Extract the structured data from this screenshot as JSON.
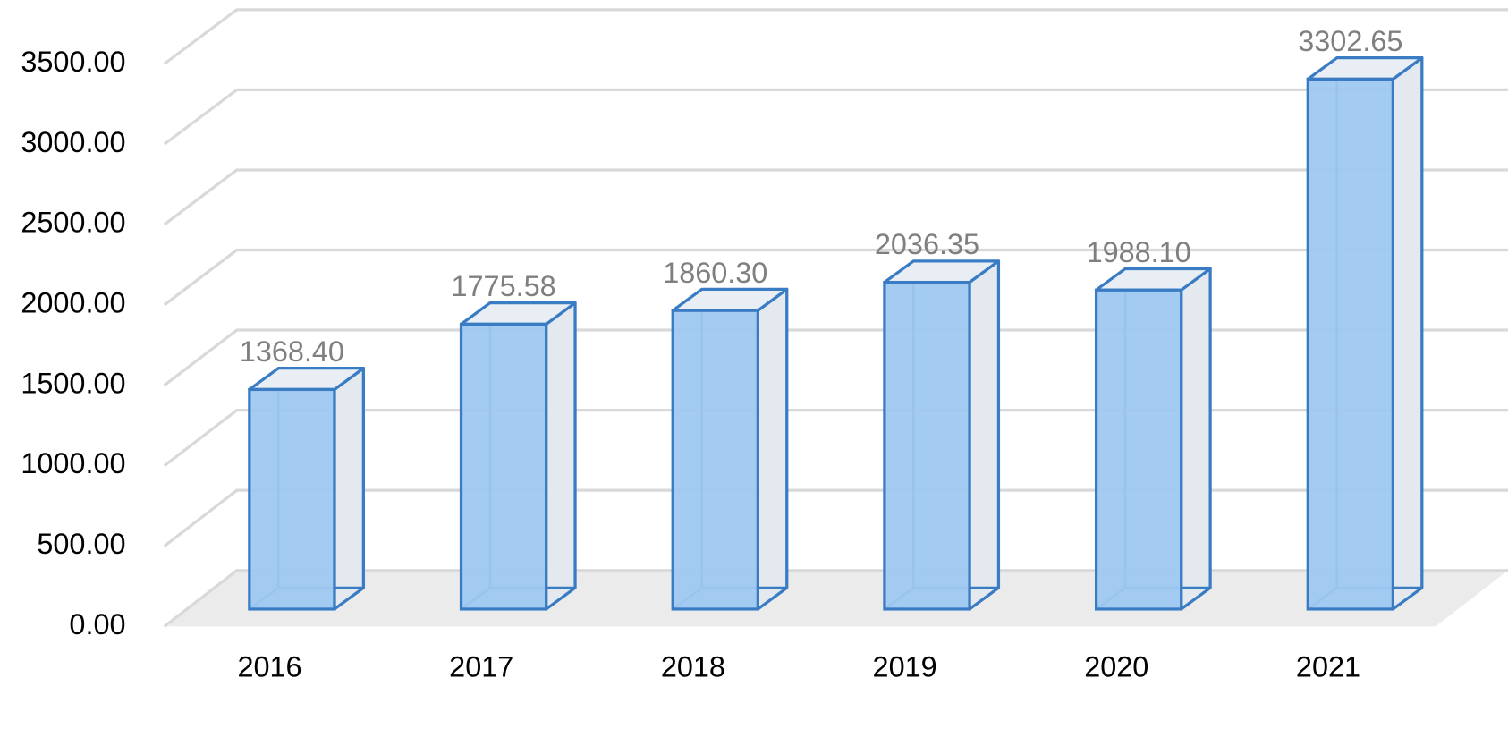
{
  "chart_data": {
    "type": "bar3d",
    "categories": [
      "2016",
      "2017",
      "2018",
      "2019",
      "2020",
      "2021"
    ],
    "values": [
      1368.4,
      1775.58,
      1860.3,
      2036.35,
      1988.1,
      3302.65
    ],
    "value_labels": [
      "1368.40",
      "1775.58",
      "1860.30",
      "2036.35",
      "1988.10",
      "3302.65"
    ],
    "color": "#9fc8f0",
    "ylim": [
      0,
      3500
    ],
    "yticks": [
      {
        "value": 0,
        "label": "0.00"
      },
      {
        "value": 500,
        "label": "500.00"
      },
      {
        "value": 1000,
        "label": "1000.00"
      },
      {
        "value": 1500,
        "label": "1500.00"
      },
      {
        "value": 2000,
        "label": "2000.00"
      },
      {
        "value": 2500,
        "label": "2500.00"
      },
      {
        "value": 3000,
        "label": "3000.00"
      },
      {
        "value": 3500,
        "label": "3500.00"
      }
    ],
    "grid": true
  }
}
